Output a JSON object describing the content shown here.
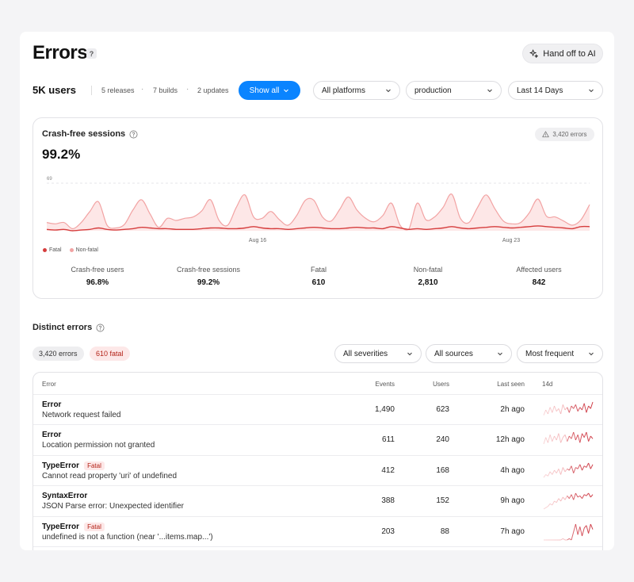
{
  "header": {
    "title": "Errors",
    "help_label": "?",
    "handoff_label": "Hand off to AI"
  },
  "toolbar": {
    "users": "5K users",
    "releases": "5 releases",
    "builds": "7 builds",
    "updates": "2 updates",
    "separator": "·",
    "show_all_label": "Show all",
    "platform": "All platforms",
    "environment": "production",
    "range": "Last 14 Days"
  },
  "crash_card": {
    "title": "Crash-free sessions",
    "value": "99.2%",
    "errors_badge": "3,420 errors",
    "y_tick": "69",
    "x_ticks": [
      "Aug 16",
      "Aug 23"
    ],
    "legend": {
      "fatal": "Fatal",
      "nonfatal": "Non-fatal"
    },
    "stats": [
      {
        "label": "Crash-free users",
        "value": "96.8%"
      },
      {
        "label": "Crash-free sessions",
        "value": "99.2%"
      },
      {
        "label": "Fatal",
        "value": "610"
      },
      {
        "label": "Non-fatal",
        "value": "2,810"
      },
      {
        "label": "Affected users",
        "value": "842"
      }
    ],
    "colors": {
      "fatal": "#d63d3d",
      "nonfatal": "#f2a3a3",
      "fill": "#fde3e3"
    }
  },
  "chart_data": {
    "type": "area",
    "title": "Crash-free sessions",
    "xlabel": "",
    "ylabel": "",
    "x_ticks": [
      "Aug 16",
      "Aug 23"
    ],
    "ylim": [
      0,
      69
    ],
    "grid": true,
    "legend": "bottom-left",
    "series": [
      {
        "name": "Non-fatal",
        "values": [
          12,
          10,
          12,
          3,
          12,
          28,
          42,
          8,
          4,
          9,
          30,
          45,
          24,
          5,
          18,
          15,
          18,
          20,
          29,
          45,
          15,
          8,
          34,
          52,
          20,
          18,
          28,
          16,
          8,
          22,
          44,
          44,
          20,
          14,
          31,
          49,
          30,
          18,
          13,
          22,
          40,
          8,
          2,
          40,
          16,
          20,
          34,
          53,
          18,
          12,
          34,
          52,
          32,
          14,
          10,
          12,
          26,
          46,
          21,
          20,
          14,
          8,
          16,
          38
        ]
      },
      {
        "name": "Fatal",
        "values": [
          2,
          1,
          2,
          0,
          1,
          2,
          4,
          2,
          1,
          2,
          3,
          5,
          4,
          3,
          3,
          2,
          2,
          2,
          3,
          4,
          4,
          3,
          3,
          4,
          6,
          4,
          3,
          3,
          2,
          3,
          4,
          5,
          4,
          3,
          3,
          4,
          5,
          4,
          4,
          3,
          6,
          4,
          2,
          3,
          2,
          3,
          4,
          6,
          4,
          3,
          4,
          5,
          6,
          5,
          4,
          5,
          6,
          7,
          6,
          5,
          4,
          3,
          6,
          6
        ]
      }
    ]
  },
  "distinct": {
    "title": "Distinct errors",
    "errors_count": "3,420 errors",
    "fatal_count": "610 fatal",
    "filters": {
      "severity": "All severities",
      "source": "All sources",
      "sort": "Most frequent"
    },
    "columns": {
      "error": "Error",
      "events": "Events",
      "users": "Users",
      "last_seen": "Last seen",
      "trend": "14d"
    },
    "rows": [
      {
        "type": "Error",
        "fatal": "",
        "message": "Network request failed",
        "events": "1,490",
        "users": "623",
        "last_seen": "2h ago",
        "trend": [
          2,
          6,
          3,
          8,
          4,
          9,
          5,
          7,
          3,
          10,
          6,
          8,
          4,
          9,
          7,
          10,
          5,
          8,
          6,
          11,
          4,
          9,
          7,
          12
        ]
      },
      {
        "type": "Error",
        "fatal": "",
        "message": "Location permission not granted",
        "events": "611",
        "users": "240",
        "last_seen": "12h ago",
        "trend": [
          3,
          8,
          4,
          10,
          5,
          9,
          6,
          11,
          4,
          8,
          10,
          5,
          9,
          7,
          12,
          6,
          10,
          4,
          11,
          8,
          12,
          5,
          9,
          7
        ]
      },
      {
        "type": "TypeError",
        "fatal": "Fatal",
        "message": "Cannot read property 'uri' of undefined",
        "events": "412",
        "users": "168",
        "last_seen": "4h ago",
        "trend": [
          1,
          3,
          2,
          5,
          3,
          6,
          4,
          7,
          3,
          8,
          5,
          7,
          6,
          9,
          4,
          8,
          7,
          10,
          6,
          9,
          8,
          11,
          7,
          10
        ]
      },
      {
        "type": "SyntaxError",
        "fatal": "",
        "message": "JSON Parse error: Unexpected identifier",
        "events": "388",
        "users": "152",
        "last_seen": "9h ago",
        "trend": [
          0,
          1,
          2,
          4,
          3,
          6,
          5,
          8,
          6,
          9,
          7,
          10,
          8,
          11,
          7,
          12,
          9,
          10,
          8,
          11,
          10,
          12,
          9,
          11
        ]
      },
      {
        "type": "TypeError",
        "fatal": "Fatal",
        "message": "undefined is not a function (near '...items.map...')",
        "events": "203",
        "users": "88",
        "last_seen": "7h ago",
        "trend": [
          0,
          0,
          0,
          0,
          0,
          0,
          0,
          0,
          0,
          1,
          0,
          0,
          1,
          0,
          6,
          12,
          4,
          10,
          3,
          9,
          11,
          5,
          12,
          8
        ]
      }
    ]
  }
}
